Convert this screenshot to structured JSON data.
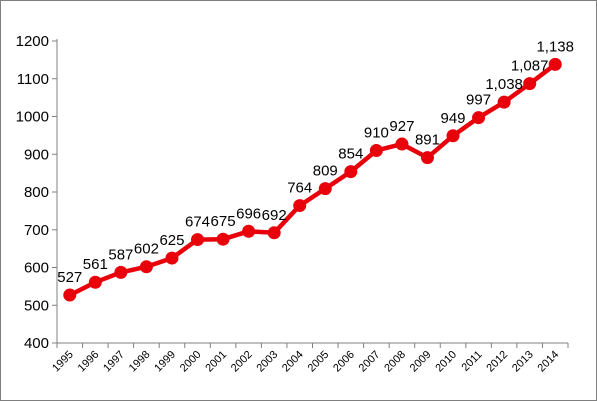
{
  "chart_data": {
    "type": "line",
    "title": "",
    "xlabel": "",
    "ylabel": "",
    "x": [
      "1995",
      "1996",
      "1997",
      "1998",
      "1999",
      "2000",
      "2001",
      "2002",
      "2003",
      "2004",
      "2005",
      "2006",
      "2007",
      "2008",
      "2009",
      "2010",
      "2011",
      "2012",
      "2013",
      "2014"
    ],
    "series": [
      {
        "values": [
          527,
          561,
          587,
          602,
          625,
          674,
          675,
          696,
          692,
          764,
          809,
          854,
          910,
          927,
          891,
          949,
          997,
          1038,
          1087,
          1138
        ],
        "labels": [
          "527",
          "561",
          "587",
          "602",
          "625",
          "674",
          "675",
          "696",
          "692",
          "764",
          "809",
          "854",
          "910",
          "927",
          "891",
          "949",
          "997",
          "1,038",
          "1,087",
          "1,138"
        ],
        "color": "#e8000b"
      }
    ],
    "ylim": [
      400,
      1200
    ],
    "yticks": [
      "400",
      "500",
      "600",
      "700",
      "800",
      "900",
      "1000",
      "1100",
      "1200"
    ],
    "grid": false,
    "legend": "none"
  }
}
